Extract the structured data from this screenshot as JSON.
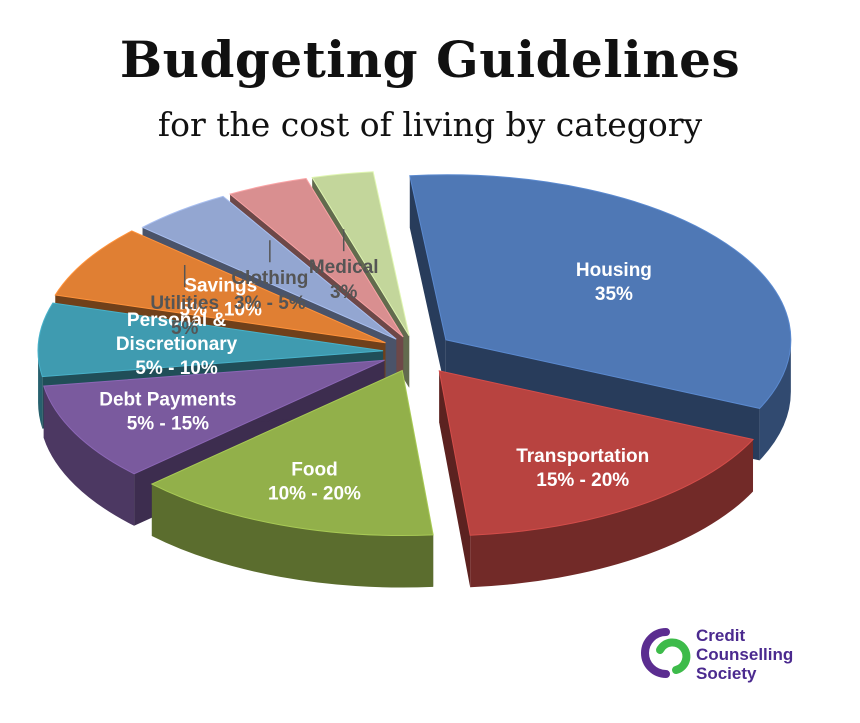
{
  "title": "Budgeting Guidelines",
  "subtitle": "for the cost of living by category",
  "chart_data": {
    "type": "pie",
    "style": "3d-exploded",
    "title": "Budgeting Guidelines",
    "subtitle": "for the cost of living by category",
    "slices": [
      {
        "label": "Housing",
        "range_text": "35%",
        "low": 35,
        "high": 35,
        "value": 35,
        "color": "#4f78b5",
        "label_style": "inside"
      },
      {
        "label": "Transportation",
        "range_text": "15% - 20%",
        "low": 15,
        "high": 20,
        "value": 17.5,
        "color": "#b84340",
        "label_style": "inside"
      },
      {
        "label": "Food",
        "range_text": "10% - 20%",
        "low": 10,
        "high": 20,
        "value": 15,
        "color": "#92b04a",
        "label_style": "inside"
      },
      {
        "label": "Debt Payments",
        "range_text": "5% - 15%",
        "low": 5,
        "high": 15,
        "value": 10,
        "color": "#7a5a9e",
        "label_style": "inside"
      },
      {
        "label": "Personal &\nDiscretionary",
        "range_text": "5% - 10%",
        "low": 5,
        "high": 10,
        "value": 7.5,
        "color": "#3f9bb0",
        "label_style": "inside"
      },
      {
        "label": "Savings",
        "range_text": "5% - 10%",
        "low": 5,
        "high": 10,
        "value": 7.5,
        "color": "#e07f33",
        "label_style": "inside"
      },
      {
        "label": "Utilities",
        "range_text": "5%",
        "low": 5,
        "high": 5,
        "value": 5,
        "color": "#93a6d1",
        "label_style": "callout"
      },
      {
        "label": "Clothing",
        "range_text": "3% - 5%",
        "low": 3,
        "high": 5,
        "value": 4,
        "color": "#d98f90",
        "label_style": "callout"
      },
      {
        "label": "Medical",
        "range_text": "3%",
        "low": 3,
        "high": 3,
        "value": 3,
        "color": "#c3d69b",
        "label_style": "callout"
      }
    ]
  },
  "brand": {
    "line1": "Credit",
    "line2": "Counselling",
    "line3": "Society",
    "color_purple": "#5b2d90",
    "color_green": "#3dbb4a"
  }
}
